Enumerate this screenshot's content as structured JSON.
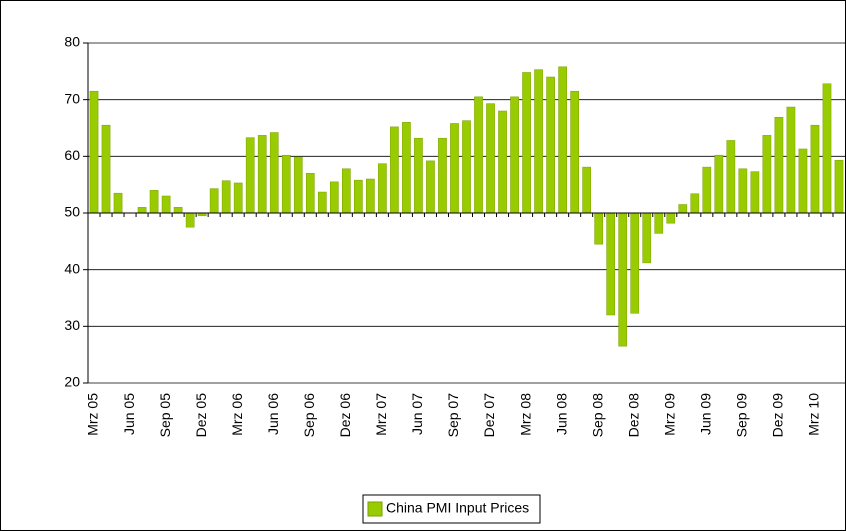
{
  "chart_data": {
    "type": "bar",
    "categories": [
      "Mrz 05",
      null,
      null,
      "Jun 05",
      null,
      null,
      "Sep 05",
      null,
      null,
      "Dez 05",
      null,
      null,
      "Mrz 06",
      null,
      null,
      "Jun 06",
      null,
      null,
      "Sep 06",
      null,
      null,
      "Dez 06",
      null,
      null,
      "Mrz 07",
      null,
      null,
      "Jun 07",
      null,
      null,
      "Sep 07",
      null,
      null,
      "Dez 07",
      null,
      null,
      "Mrz 08",
      null,
      null,
      "Jun 08",
      null,
      null,
      "Sep 08",
      null,
      null,
      "Dez 08",
      null,
      null,
      "Mrz 09",
      null,
      null,
      "Jun 09",
      null,
      null,
      "Sep 09",
      null,
      null,
      "Dez 09",
      null,
      null,
      "Mrz 10",
      null,
      null
    ],
    "series": [
      {
        "name": "China PMI Input Prices",
        "color": "#99cc00",
        "values": [
          71.5,
          65.5,
          53.5,
          50,
          51,
          54,
          53,
          51,
          47.5,
          49.5,
          54.3,
          55.7,
          55.3,
          63.3,
          63.7,
          64.2,
          60.2,
          59.9,
          57,
          53.7,
          55.5,
          57.8,
          55.8,
          56,
          58.7,
          65.2,
          66,
          63.2,
          59.2,
          63.2,
          65.8,
          66.3,
          70.5,
          69.3,
          68,
          70.5,
          74.8,
          75.3,
          74,
          75.8,
          71.5,
          58.1,
          44.5,
          32,
          26.5,
          32.3,
          41.2,
          46.4,
          48.2,
          51.5,
          53.4,
          58.1,
          60.2,
          62.8,
          57.8,
          57.3,
          63.7,
          66.9,
          68.7,
          61.3,
          65.5,
          72.8,
          59.3
        ]
      }
    ],
    "bar_base": 50,
    "ylim": [
      20,
      80
    ],
    "yticks": [
      20,
      30,
      40,
      50,
      60,
      70,
      80
    ],
    "grid": true,
    "legend": "bottom"
  }
}
